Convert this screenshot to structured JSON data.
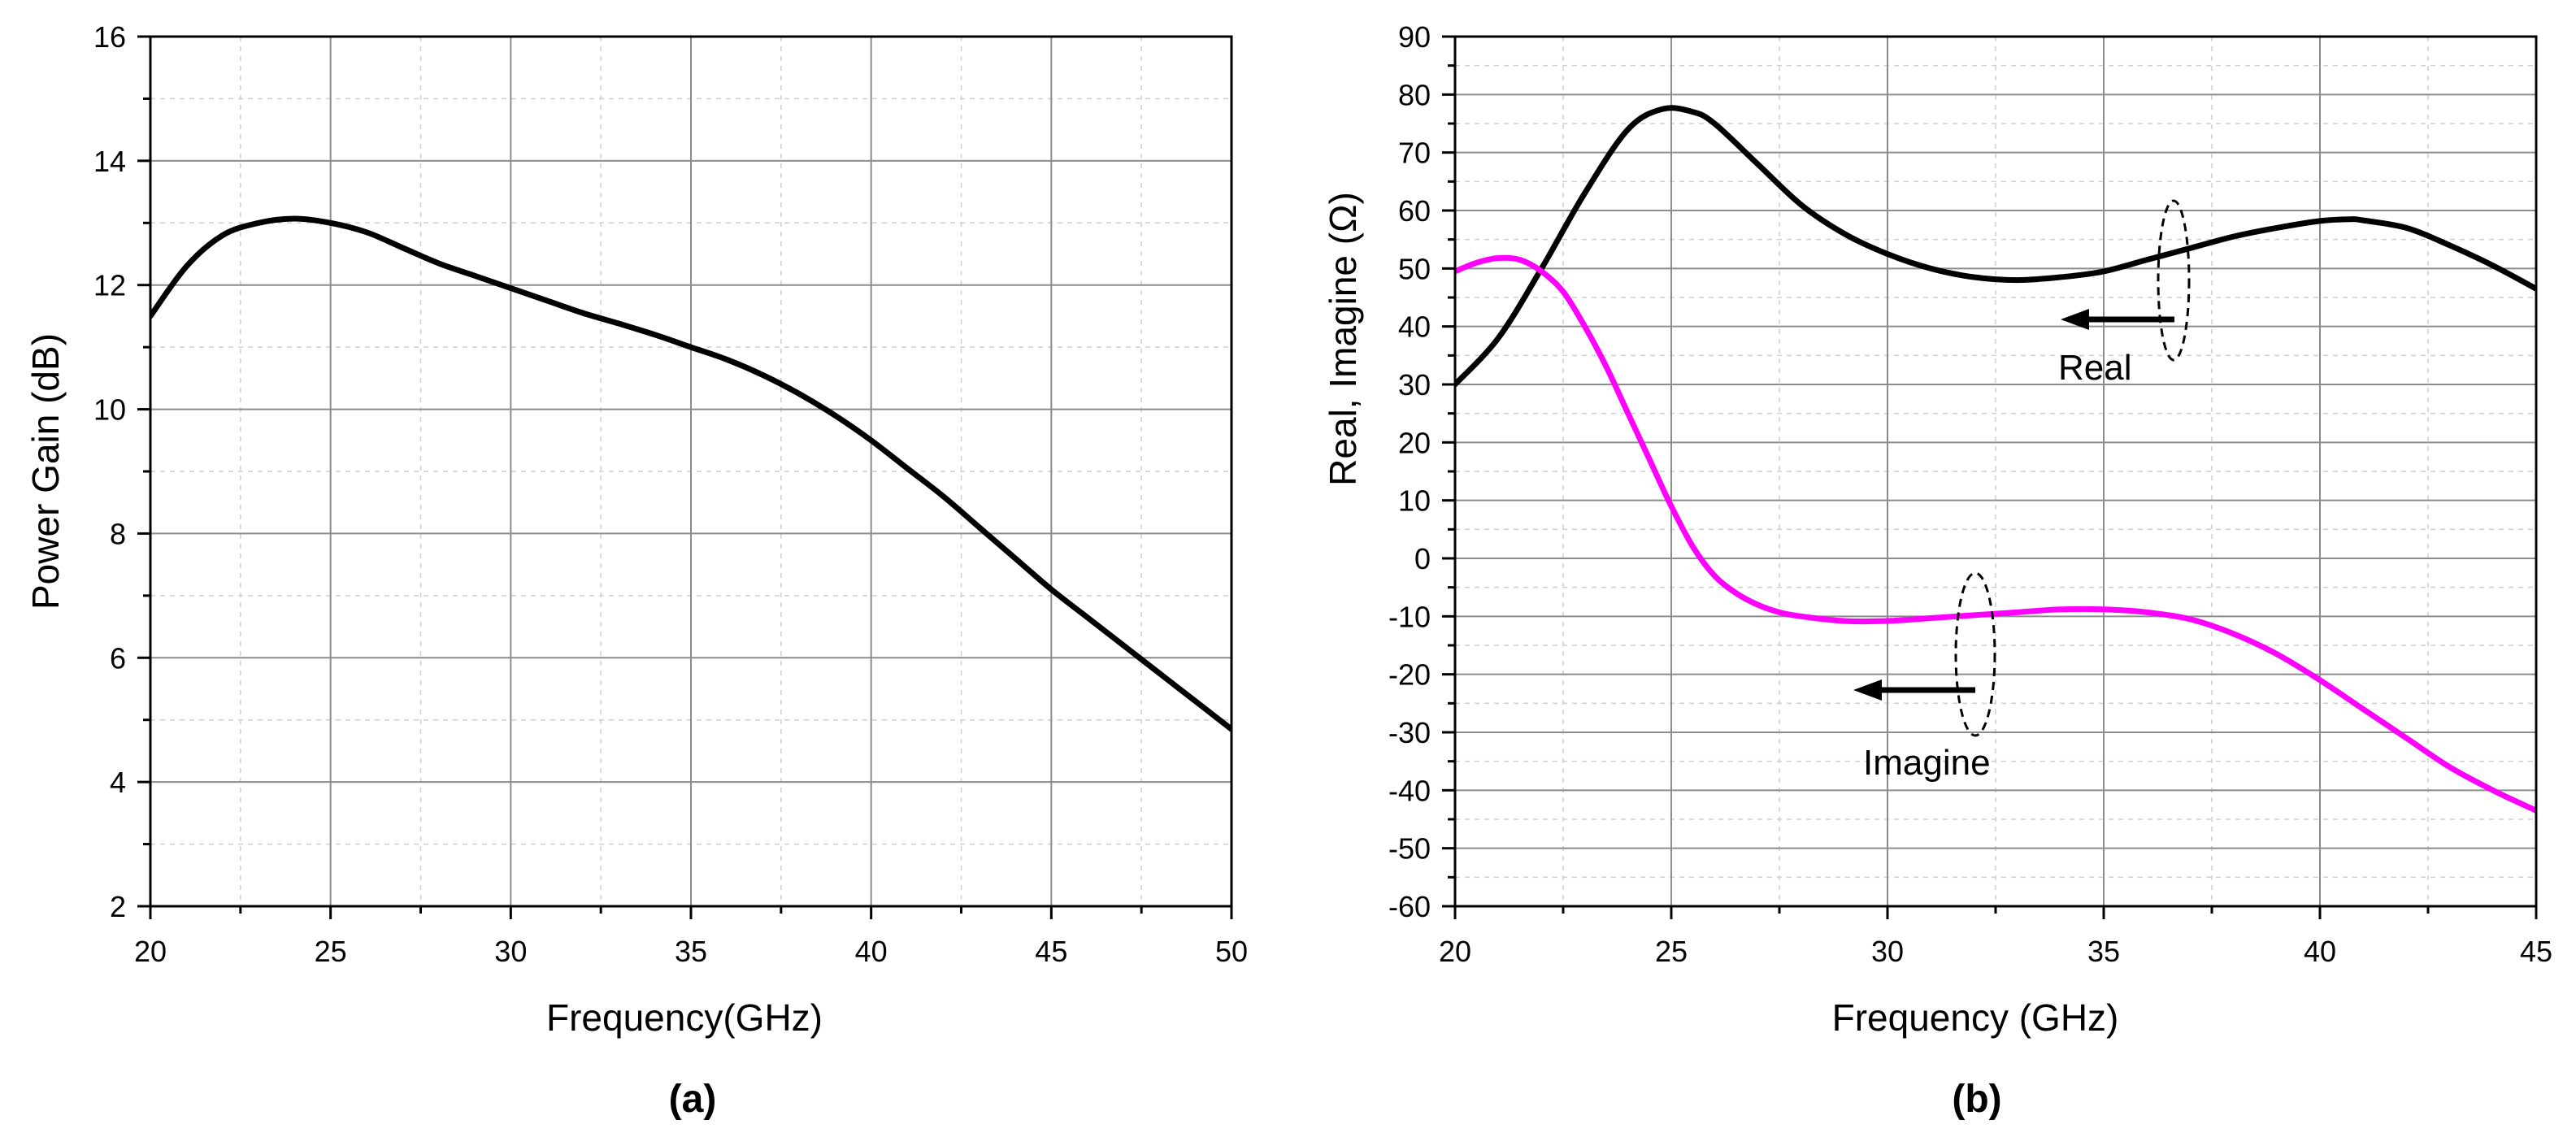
{
  "chart_data": [
    {
      "type": "line",
      "panel_label": "(a)",
      "xlabel": "Frequency(GHz)",
      "ylabel": "Power Gain (dB)",
      "xlim": [
        20,
        50
      ],
      "ylim": [
        2,
        16
      ],
      "x_ticks": [
        20,
        25,
        30,
        35,
        40,
        45,
        50
      ],
      "y_ticks": [
        2,
        4,
        6,
        8,
        10,
        12,
        14,
        16
      ],
      "grid": true,
      "series": [
        {
          "name": "Power Gain",
          "color": "#000000",
          "x": [
            20,
            21,
            22,
            23,
            24,
            25,
            26,
            27,
            28,
            29,
            30,
            31,
            32,
            33,
            34,
            35,
            36,
            37,
            38,
            39,
            40,
            41,
            42,
            43,
            44,
            45,
            46,
            47,
            48,
            49,
            50
          ],
          "y": [
            11.5,
            12.3,
            12.8,
            13.0,
            13.07,
            13.0,
            12.85,
            12.6,
            12.35,
            12.15,
            11.95,
            11.75,
            11.55,
            11.38,
            11.2,
            11.0,
            10.8,
            10.55,
            10.25,
            9.9,
            9.5,
            9.05,
            8.6,
            8.1,
            7.6,
            7.1,
            6.65,
            6.2,
            5.75,
            5.3,
            4.85
          ]
        }
      ]
    },
    {
      "type": "line",
      "panel_label": "(b)",
      "xlabel": "Frequency (GHz)",
      "ylabel": "Real, Imagine (Ω)",
      "xlim": [
        20,
        45
      ],
      "ylim": [
        -60,
        90
      ],
      "x_ticks": [
        20,
        25,
        30,
        35,
        40,
        45
      ],
      "y_ticks": [
        -60,
        -50,
        -40,
        -30,
        -20,
        -10,
        0,
        10,
        20,
        30,
        40,
        50,
        60,
        70,
        80,
        90
      ],
      "grid": true,
      "series": [
        {
          "name": "Real",
          "color": "#000000",
          "x": [
            20,
            21,
            22,
            23,
            24,
            24.8,
            25.5,
            26,
            27,
            28,
            29,
            30,
            31,
            32,
            33,
            34,
            35,
            36,
            37,
            38,
            39,
            40,
            40.7,
            41,
            42,
            43,
            44,
            45
          ],
          "y": [
            30,
            38,
            50,
            63,
            74,
            77.5,
            77,
            75,
            68,
            61,
            56,
            52.5,
            50,
            48.5,
            48,
            48.5,
            49.5,
            51.5,
            53.5,
            55.5,
            57,
            58.2,
            58.5,
            58.3,
            57,
            54,
            50.5,
            46.5
          ]
        },
        {
          "name": "Imagine",
          "color": "#ff00ff",
          "x": [
            20,
            20.5,
            21,
            21.5,
            22,
            22.5,
            23,
            23.5,
            24,
            24.5,
            25,
            25.5,
            26,
            26.5,
            27,
            27.5,
            28,
            29,
            30,
            31,
            32,
            33,
            34,
            35,
            36,
            37,
            38,
            39,
            40,
            41,
            42,
            43,
            44,
            45
          ],
          "y": [
            49.5,
            51,
            51.8,
            51.5,
            49.5,
            46,
            40,
            33,
            25,
            17,
            9,
            2,
            -3,
            -6,
            -8,
            -9.3,
            -10,
            -10.8,
            -10.8,
            -10.3,
            -9.8,
            -9.3,
            -8.8,
            -8.8,
            -9.3,
            -10.5,
            -13,
            -16.5,
            -21,
            -26,
            -31,
            -36,
            -40,
            -43.5
          ]
        }
      ],
      "annotations": [
        {
          "text": "Real"
        },
        {
          "text": "Imagine"
        }
      ]
    }
  ]
}
